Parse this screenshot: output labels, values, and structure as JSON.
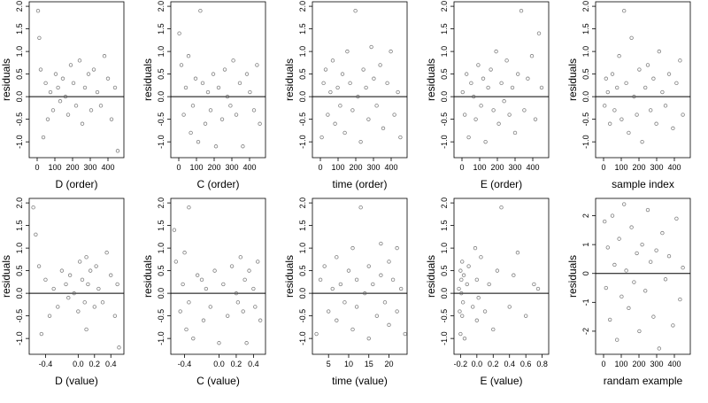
{
  "chart_data": [
    {
      "type": "scatter",
      "x_label": "D (order)",
      "y_label": "residuals",
      "xlim": [
        -45,
        490
      ],
      "ylim": [
        -1.35,
        2.1
      ],
      "xticks": [
        0,
        100,
        200,
        300,
        400
      ],
      "yticks": [
        {
          "value": -1,
          "label": "-1.0"
        },
        -0.5,
        {
          "value": 0,
          "label": "0.0"
        },
        0.5,
        {
          "value": 1,
          "label": "1.0"
        },
        1.5,
        {
          "value": 2,
          "label": "2.0"
        }
      ],
      "hline": 0,
      "color": "#555555",
      "x": [
        5,
        12,
        20,
        35,
        48,
        60,
        75,
        90,
        105,
        118,
        130,
        145,
        160,
        175,
        190,
        205,
        220,
        240,
        255,
        270,
        290,
        305,
        320,
        340,
        360,
        380,
        400,
        420,
        440,
        455
      ],
      "y": [
        1.9,
        1.3,
        0.6,
        -0.9,
        0.3,
        -0.5,
        0.1,
        -0.3,
        0.5,
        0.2,
        -0.1,
        0.4,
        0.0,
        -0.4,
        0.7,
        0.3,
        -0.2,
        0.8,
        -0.6,
        0.2,
        0.5,
        -0.3,
        0.6,
        0.1,
        -0.2,
        0.9,
        0.4,
        -0.5,
        0.2,
        -1.2
      ]
    },
    {
      "type": "scatter",
      "x_label": "C (order)",
      "y_label": "residuals",
      "xlim": [
        -45,
        490
      ],
      "ylim": [
        -1.35,
        2.1
      ],
      "xticks": [
        0,
        100,
        200,
        300,
        400
      ],
      "yticks": [
        {
          "value": -1,
          "label": "-1.0"
        },
        -0.5,
        {
          "value": 0,
          "label": "0.0"
        },
        0.5,
        {
          "value": 1,
          "label": "1.0"
        },
        1.5,
        {
          "value": 2,
          "label": "2.0"
        }
      ],
      "hline": 0,
      "color": "#555555",
      "x": [
        3,
        15,
        28,
        40,
        55,
        68,
        80,
        95,
        110,
        122,
        135,
        150,
        165,
        180,
        195,
        210,
        225,
        245,
        260,
        275,
        292,
        308,
        325,
        345,
        362,
        385,
        402,
        425,
        442,
        458
      ],
      "y": [
        1.4,
        0.7,
        -0.4,
        0.2,
        0.9,
        -0.8,
        -0.2,
        0.4,
        -1.0,
        1.9,
        0.3,
        -0.6,
        0.1,
        -0.3,
        0.5,
        -1.1,
        0.2,
        -0.5,
        0.6,
        0.0,
        -0.2,
        0.8,
        -0.4,
        0.3,
        -1.1,
        0.5,
        0.1,
        -0.3,
        0.7,
        -0.6
      ]
    },
    {
      "type": "scatter",
      "x_label": "time (order)",
      "y_label": "residuals",
      "xlim": [
        -45,
        490
      ],
      "ylim": [
        -1.35,
        2.1
      ],
      "xticks": [
        0,
        100,
        200,
        300,
        400
      ],
      "yticks": [
        {
          "value": -1,
          "label": "-1.0"
        },
        -0.5,
        {
          "value": 0,
          "label": "0.0"
        },
        0.5,
        {
          "value": 1,
          "label": "1.0"
        },
        1.5,
        {
          "value": 2,
          "label": "2.0"
        }
      ],
      "hline": 0,
      "color": "#555555",
      "x": [
        8,
        18,
        30,
        42,
        57,
        70,
        83,
        98,
        112,
        125,
        138,
        152,
        168,
        182,
        198,
        212,
        228,
        243,
        258,
        272,
        288,
        302,
        318,
        338,
        355,
        378,
        398,
        418,
        438,
        452
      ],
      "y": [
        -0.9,
        0.3,
        0.6,
        -0.4,
        0.1,
        0.8,
        -0.6,
        0.2,
        -0.2,
        0.5,
        -0.8,
        1.0,
        0.3,
        -0.3,
        1.9,
        0.0,
        -1.0,
        0.6,
        0.2,
        -0.5,
        1.1,
        0.4,
        -0.2,
        0.7,
        -0.7,
        0.3,
        1.0,
        -0.4,
        0.1,
        -0.9
      ]
    },
    {
      "type": "scatter",
      "x_label": "E (order)",
      "y_label": "residuals",
      "xlim": [
        -45,
        490
      ],
      "ylim": [
        -1.35,
        2.1
      ],
      "xticks": [
        0,
        100,
        200,
        300,
        400
      ],
      "yticks": [
        {
          "value": -1,
          "label": "-1.0"
        },
        -0.5,
        {
          "value": 0,
          "label": "0.0"
        },
        0.5,
        {
          "value": 1,
          "label": "1.0"
        },
        1.5,
        {
          "value": 2,
          "label": "2.0"
        }
      ],
      "hline": 0,
      "color": "#555555",
      "x": [
        4,
        16,
        26,
        38,
        52,
        66,
        78,
        92,
        108,
        120,
        133,
        148,
        163,
        178,
        193,
        208,
        223,
        238,
        253,
        268,
        285,
        300,
        316,
        335,
        352,
        372,
        395,
        415,
        435,
        450
      ],
      "y": [
        0.1,
        -0.4,
        0.5,
        -0.9,
        0.3,
        0.0,
        -0.5,
        0.7,
        -0.2,
        0.4,
        -1.0,
        0.2,
        0.6,
        -0.3,
        1.0,
        -0.6,
        0.3,
        -0.1,
        0.8,
        -0.4,
        0.2,
        -0.8,
        0.5,
        1.9,
        -0.3,
        0.4,
        0.9,
        -0.5,
        1.4,
        0.2
      ]
    },
    {
      "type": "scatter",
      "x_label": "sample index",
      "y_label": "residuals",
      "xlim": [
        -45,
        490
      ],
      "ylim": [
        -1.35,
        2.1
      ],
      "xticks": [
        0,
        100,
        200,
        300,
        400
      ],
      "yticks": [
        {
          "value": -1,
          "label": "-1.0"
        },
        -0.5,
        {
          "value": 0,
          "label": "0.0"
        },
        0.5,
        {
          "value": 1,
          "label": "1.0"
        },
        1.5,
        {
          "value": 2,
          "label": "2.0"
        }
      ],
      "hline": 0,
      "color": "#555555",
      "x": [
        6,
        14,
        24,
        36,
        50,
        62,
        76,
        88,
        102,
        116,
        128,
        142,
        158,
        172,
        188,
        202,
        218,
        236,
        250,
        266,
        282,
        298,
        314,
        332,
        350,
        370,
        392,
        412,
        432,
        448
      ],
      "y": [
        -0.2,
        0.4,
        0.1,
        -0.6,
        0.5,
        -0.3,
        0.2,
        0.9,
        -0.5,
        1.9,
        0.3,
        -0.8,
        1.3,
        0.0,
        -0.4,
        0.6,
        -1.0,
        0.2,
        0.7,
        -0.3,
        0.4,
        -0.6,
        1.0,
        0.1,
        -0.2,
        0.5,
        -0.7,
        0.3,
        0.8,
        -0.4
      ]
    },
    {
      "type": "scatter",
      "x_label": "D (value)",
      "y_label": "residuals",
      "xlim": [
        -0.6,
        0.56
      ],
      "ylim": [
        -1.35,
        2.1
      ],
      "xticks": [
        -0.4,
        {
          "value": 0,
          "label": "0.0"
        },
        0.2,
        0.4
      ],
      "yticks": [
        {
          "value": -1,
          "label": "-1.0"
        },
        -0.5,
        {
          "value": 0,
          "label": "0.0"
        },
        0.5,
        {
          "value": 1,
          "label": "1.0"
        },
        1.5,
        {
          "value": 2,
          "label": "2.0"
        }
      ],
      "hline": 0,
      "color": "#555555",
      "x": [
        -0.55,
        -0.52,
        -0.48,
        -0.45,
        -0.4,
        -0.35,
        -0.3,
        -0.25,
        -0.2,
        -0.15,
        -0.12,
        -0.1,
        -0.05,
        0.0,
        0.02,
        0.05,
        0.08,
        0.1,
        0.1,
        0.12,
        0.15,
        0.2,
        0.22,
        0.25,
        0.3,
        0.35,
        0.4,
        0.45,
        0.48,
        0.5
      ],
      "y": [
        1.9,
        1.3,
        0.6,
        -0.9,
        0.3,
        -0.5,
        0.1,
        -0.3,
        0.5,
        0.2,
        -0.1,
        0.4,
        0.0,
        -0.4,
        0.7,
        0.3,
        -0.2,
        0.8,
        -0.8,
        0.2,
        0.5,
        -0.3,
        0.6,
        0.1,
        -0.2,
        0.9,
        0.4,
        -0.5,
        0.2,
        -1.2
      ]
    },
    {
      "type": "scatter",
      "x_label": "C (value)",
      "y_label": "residuals",
      "xlim": [
        -0.56,
        0.54
      ],
      "ylim": [
        -1.35,
        2.1
      ],
      "xticks": [
        -0.4,
        {
          "value": 0,
          "label": "0.0"
        },
        0.2,
        0.4
      ],
      "yticks": [
        {
          "value": -1,
          "label": "-1.0"
        },
        -0.5,
        {
          "value": 0,
          "label": "0.0"
        },
        0.5,
        {
          "value": 1,
          "label": "1.0"
        },
        1.5,
        {
          "value": 2,
          "label": "2.0"
        }
      ],
      "hline": 0,
      "color": "#555555",
      "x": [
        -0.52,
        -0.5,
        -0.45,
        -0.42,
        -0.4,
        -0.38,
        -0.35,
        -0.35,
        -0.3,
        -0.25,
        -0.2,
        -0.18,
        -0.15,
        -0.1,
        -0.05,
        0.0,
        0.05,
        0.1,
        0.15,
        0.2,
        0.22,
        0.25,
        0.28,
        0.3,
        0.32,
        0.35,
        0.4,
        0.42,
        0.45,
        0.48
      ],
      "y": [
        1.4,
        0.7,
        -0.4,
        0.2,
        0.9,
        -0.8,
        -0.2,
        1.9,
        -1.0,
        0.4,
        0.3,
        -0.6,
        0.1,
        -0.3,
        0.5,
        -1.1,
        0.2,
        -0.5,
        0.6,
        0.0,
        -0.2,
        0.8,
        -0.4,
        0.3,
        -1.1,
        0.5,
        0.1,
        -0.3,
        0.7,
        -0.6
      ]
    },
    {
      "type": "scatter",
      "x_label": "time (value)",
      "y_label": "residuals",
      "xlim": [
        1,
        24.5
      ],
      "ylim": [
        -1.35,
        2.1
      ],
      "xticks": [
        5,
        10,
        15,
        20
      ],
      "yticks": [
        {
          "value": -1,
          "label": "-1.0"
        },
        -0.5,
        {
          "value": 0,
          "label": "0.0"
        },
        0.5,
        {
          "value": 1,
          "label": "1.0"
        },
        1.5,
        {
          "value": 2,
          "label": "2.0"
        }
      ],
      "hline": 0,
      "color": "#555555",
      "x": [
        2,
        3,
        4,
        5,
        6,
        7,
        7,
        8,
        9,
        10,
        11,
        11,
        12,
        12,
        13,
        14,
        15,
        15,
        16,
        17,
        18,
        18,
        19,
        20,
        20,
        21,
        22,
        22,
        23,
        24
      ],
      "y": [
        -0.9,
        0.3,
        0.6,
        -0.4,
        0.1,
        0.8,
        -0.6,
        0.2,
        -0.2,
        0.5,
        -0.8,
        1.0,
        0.3,
        -0.3,
        1.9,
        0.0,
        -1.0,
        0.6,
        0.2,
        -0.5,
        1.1,
        0.4,
        -0.2,
        0.7,
        -0.7,
        0.3,
        1.0,
        -0.4,
        0.1,
        -0.9
      ]
    },
    {
      "type": "scatter",
      "x_label": "E (value)",
      "y_label": "residuals",
      "xlim": [
        -0.28,
        0.88
      ],
      "ylim": [
        -1.35,
        2.1
      ],
      "xticks": [
        -0.2,
        {
          "value": 0,
          "label": "0.0"
        },
        0.2,
        0.4,
        0.6,
        0.8
      ],
      "yticks": [
        {
          "value": -1,
          "label": "-1.0"
        },
        -0.5,
        {
          "value": 0,
          "label": "0.0"
        },
        0.5,
        {
          "value": 1,
          "label": "1.0"
        },
        1.5,
        {
          "value": 2,
          "label": "2.0"
        }
      ],
      "hline": 0,
      "color": "#555555",
      "x": [
        -0.22,
        -0.21,
        -0.2,
        -0.2,
        -0.19,
        -0.19,
        -0.18,
        -0.18,
        -0.17,
        -0.16,
        -0.15,
        -0.12,
        -0.1,
        -0.05,
        -0.02,
        0.0,
        0.0,
        0.02,
        0.05,
        0.1,
        0.15,
        0.2,
        0.25,
        0.3,
        0.4,
        0.45,
        0.5,
        0.6,
        0.7,
        0.75
      ],
      "y": [
        0.1,
        -0.4,
        0.5,
        -0.9,
        0.3,
        0.0,
        -0.5,
        0.7,
        -0.2,
        0.4,
        -1.0,
        0.2,
        0.6,
        -0.3,
        1.0,
        -0.6,
        0.3,
        -0.1,
        0.8,
        -0.4,
        0.2,
        -0.8,
        0.5,
        1.9,
        -0.3,
        0.4,
        0.9,
        -0.5,
        0.2,
        0.1
      ]
    },
    {
      "type": "scatter",
      "x_label": "randam example",
      "y_label": "residuals",
      "xlim": [
        -45,
        490
      ],
      "ylim": [
        -2.8,
        2.6
      ],
      "xticks": [
        0,
        100,
        200,
        300,
        400
      ],
      "yticks": [
        -2,
        -1,
        0,
        1,
        2
      ],
      "hline": 0,
      "color": "#555555",
      "x": [
        6,
        14,
        24,
        36,
        50,
        62,
        76,
        88,
        102,
        116,
        128,
        142,
        158,
        172,
        188,
        202,
        218,
        236,
        250,
        266,
        282,
        298,
        314,
        332,
        350,
        370,
        392,
        412,
        432,
        448
      ],
      "y": [
        1.8,
        -0.5,
        0.9,
        -1.6,
        2.0,
        0.3,
        -2.3,
        1.2,
        -0.8,
        2.4,
        0.1,
        -1.2,
        1.6,
        -0.3,
        0.7,
        -2.0,
        1.0,
        -0.6,
        2.2,
        0.4,
        -1.5,
        0.8,
        -2.6,
        1.4,
        -0.2,
        0.6,
        -1.8,
        1.9,
        -0.9,
        0.2
      ]
    }
  ]
}
